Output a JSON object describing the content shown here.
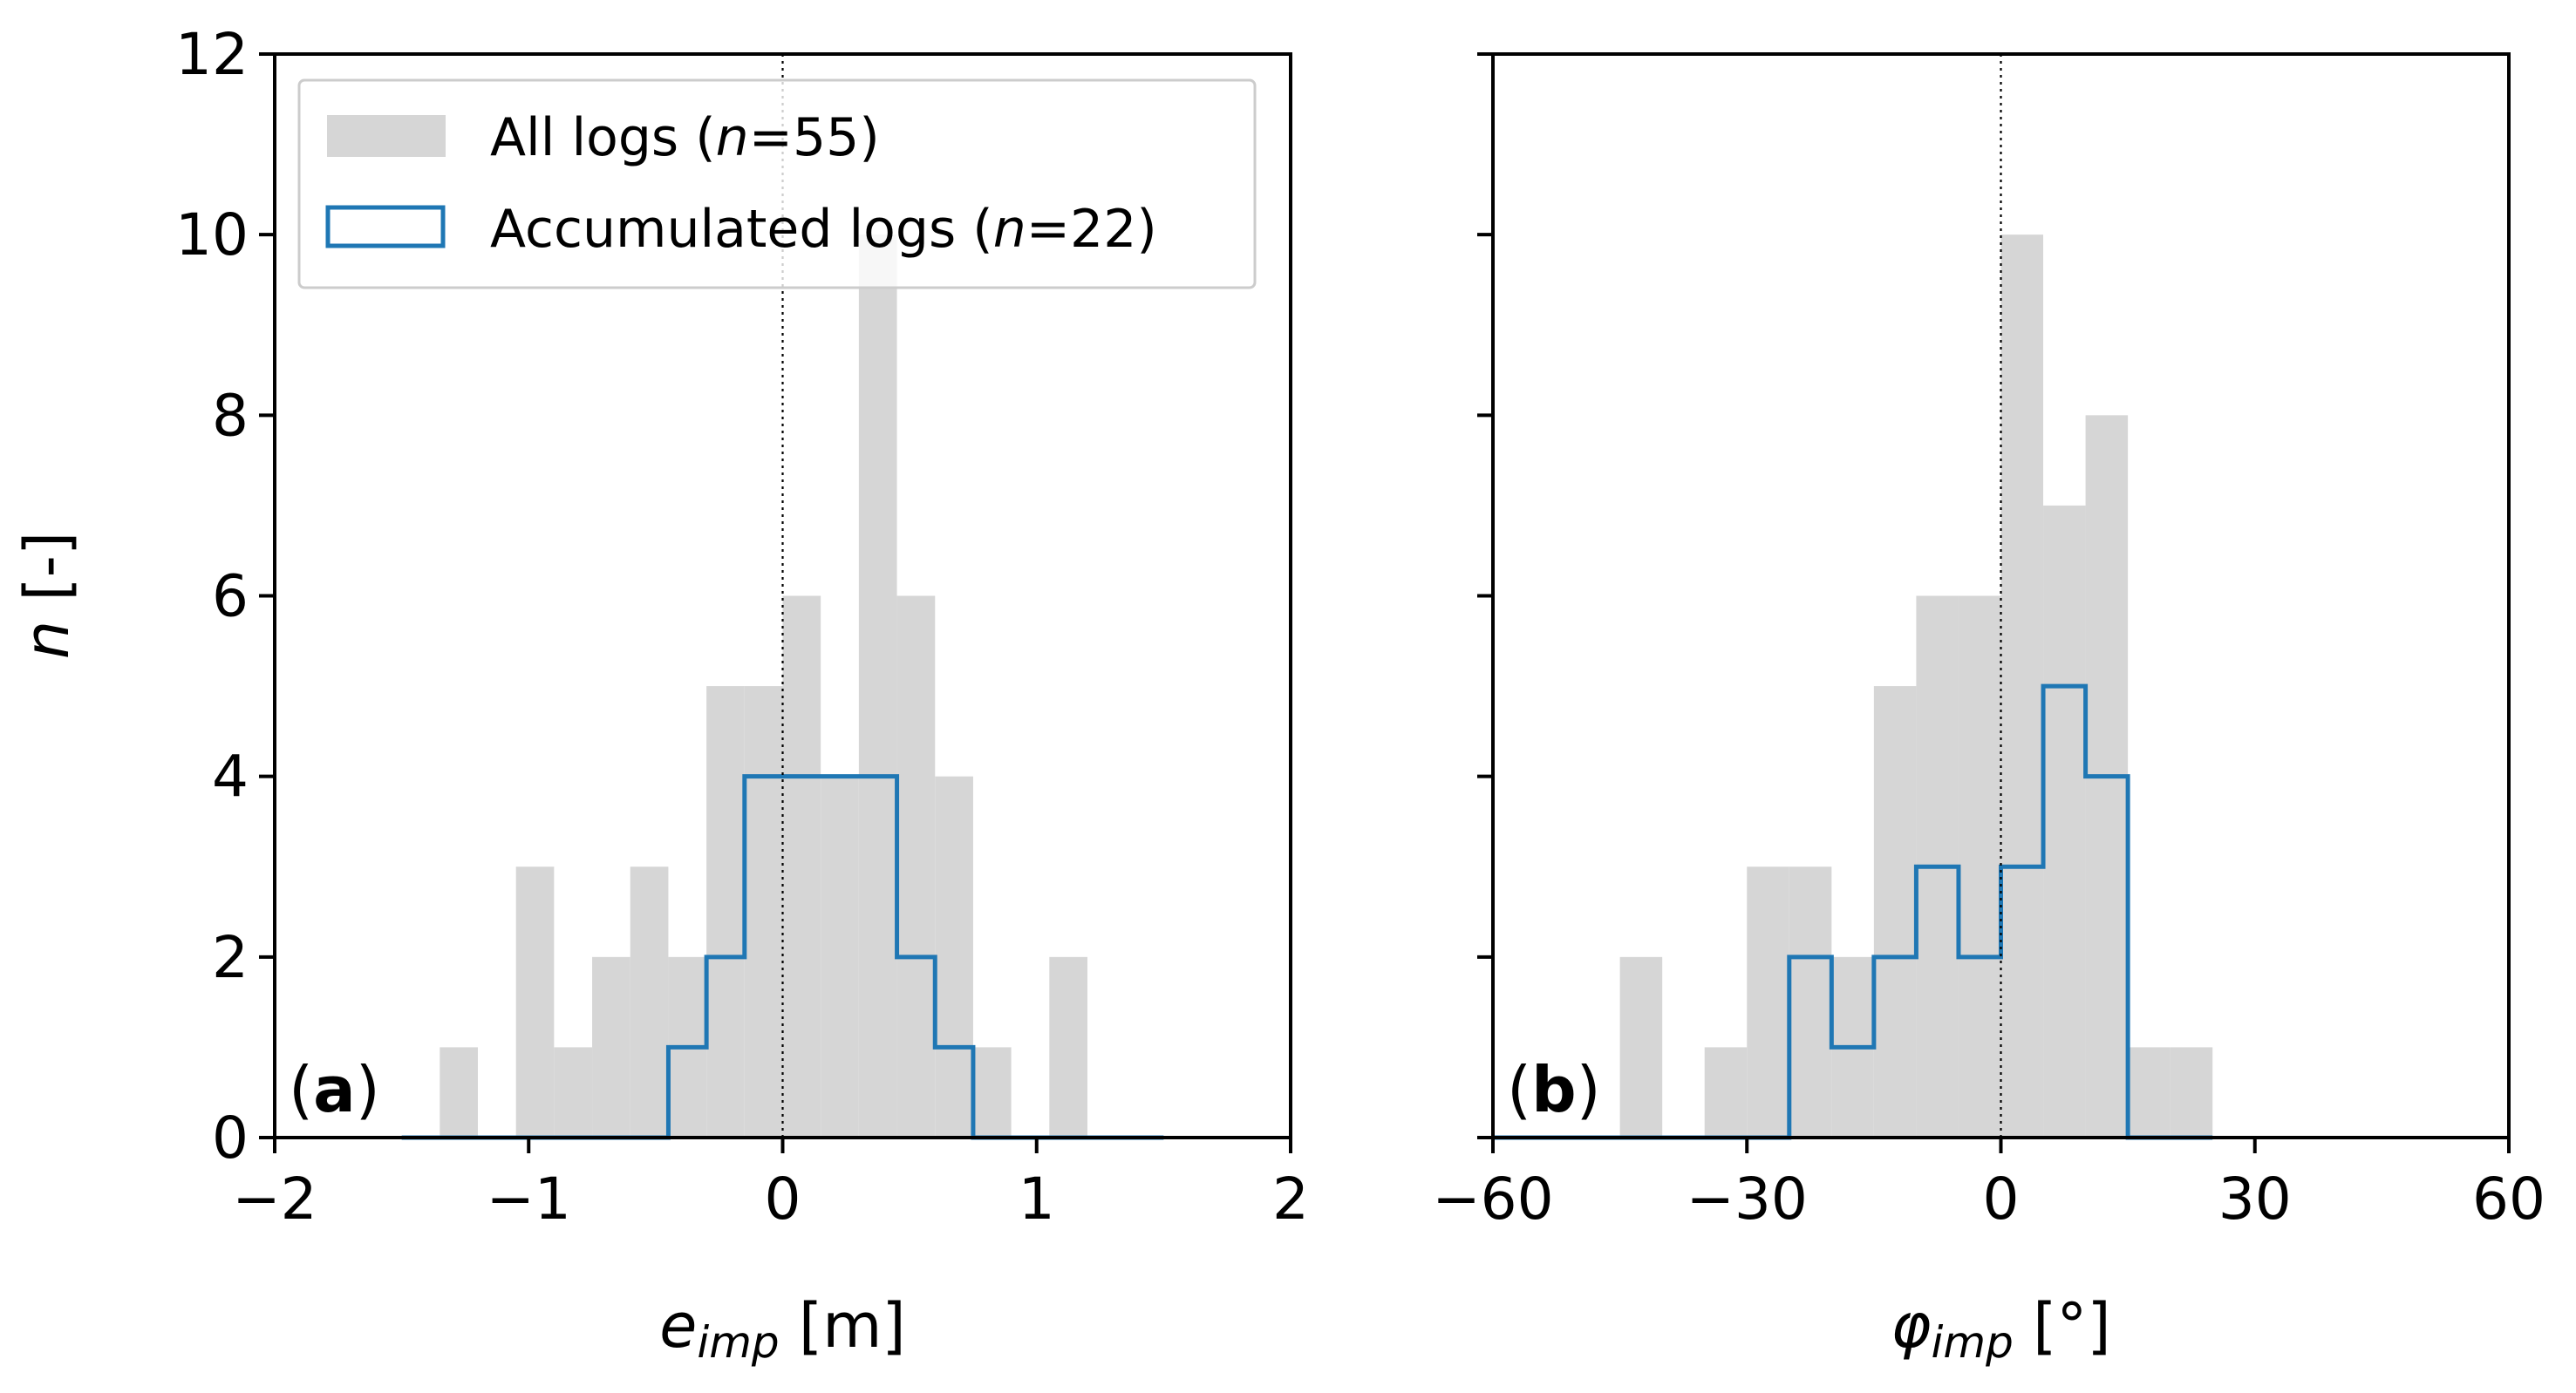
{
  "colors": {
    "all_fill": "#d6d6d6",
    "accum_line": "#1f77b4",
    "axis": "#000000",
    "legend_border": "#cccccc"
  },
  "y_axis": {
    "label_italic": "n",
    "label_rest": " [-]",
    "ticks": [
      0,
      2,
      4,
      6,
      8,
      10,
      12
    ],
    "tick_labels": [
      "0",
      "2",
      "4",
      "6",
      "8",
      "10",
      "12"
    ],
    "ylim": [
      0,
      12
    ]
  },
  "legend": {
    "all": {
      "pre": "All logs (",
      "italic": "n",
      "post": "=55)"
    },
    "accum": {
      "pre": "Accumulated logs (",
      "italic": "n",
      "post": "=22)"
    }
  },
  "chart_data": [
    {
      "type": "histogram",
      "panel_label": "a",
      "xlabel_main": "e",
      "xlabel_sub": "imp",
      "xlabel_unit": " [m]",
      "xlim": [
        -2,
        2
      ],
      "xticks": [
        -2,
        -1,
        0,
        1,
        2
      ],
      "xtick_labels": [
        "−2",
        "−1",
        "0",
        "1",
        "2"
      ],
      "ylabel": "n [-]",
      "ylim": [
        0,
        12
      ],
      "vline_x": 0,
      "bin_edges": [
        -1.5,
        -1.35,
        -1.2,
        -1.05,
        -0.9,
        -0.75,
        -0.6,
        -0.45,
        -0.3,
        -0.15,
        0,
        0.15,
        0.3,
        0.45,
        0.6,
        0.75,
        0.9,
        1.05,
        1.2,
        1.35,
        1.5
      ],
      "series": [
        {
          "name": "All logs (n=55)",
          "style": "filled",
          "counts": [
            0,
            1,
            0,
            3,
            1,
            2,
            3,
            2,
            5,
            5,
            6,
            4,
            10,
            6,
            4,
            1,
            0,
            2,
            0,
            0
          ]
        },
        {
          "name": "Accumulated logs (n=22)",
          "style": "step",
          "counts": [
            0,
            0,
            0,
            0,
            0,
            0,
            0,
            1,
            2,
            4,
            4,
            4,
            4,
            2,
            1,
            0,
            0,
            0,
            0,
            0
          ]
        }
      ]
    },
    {
      "type": "histogram",
      "panel_label": "b",
      "xlabel_main": "φ",
      "xlabel_sub": "imp",
      "xlabel_unit": " [°]",
      "xlim": [
        -60,
        60
      ],
      "xticks": [
        -60,
        -30,
        0,
        30,
        60
      ],
      "xtick_labels": [
        "−60",
        "−30",
        "0",
        "30",
        "60"
      ],
      "ylabel": "n [-]",
      "ylim": [
        0,
        12
      ],
      "vline_x": 0,
      "bin_edges": [
        -60,
        -55,
        -50,
        -45,
        -40,
        -35,
        -30,
        -25,
        -20,
        -15,
        -10,
        -5,
        0,
        5,
        10,
        15,
        20,
        25
      ],
      "series": [
        {
          "name": "All logs (n=55)",
          "style": "filled",
          "counts": [
            0,
            0,
            0,
            2,
            0,
            1,
            3,
            3,
            2,
            5,
            6,
            6,
            10,
            7,
            8,
            1,
            1
          ]
        },
        {
          "name": "Accumulated logs (n=22)",
          "style": "step",
          "counts": [
            0,
            0,
            0,
            0,
            0,
            0,
            0,
            2,
            1,
            2,
            3,
            2,
            3,
            5,
            4,
            0,
            0
          ]
        }
      ]
    }
  ]
}
